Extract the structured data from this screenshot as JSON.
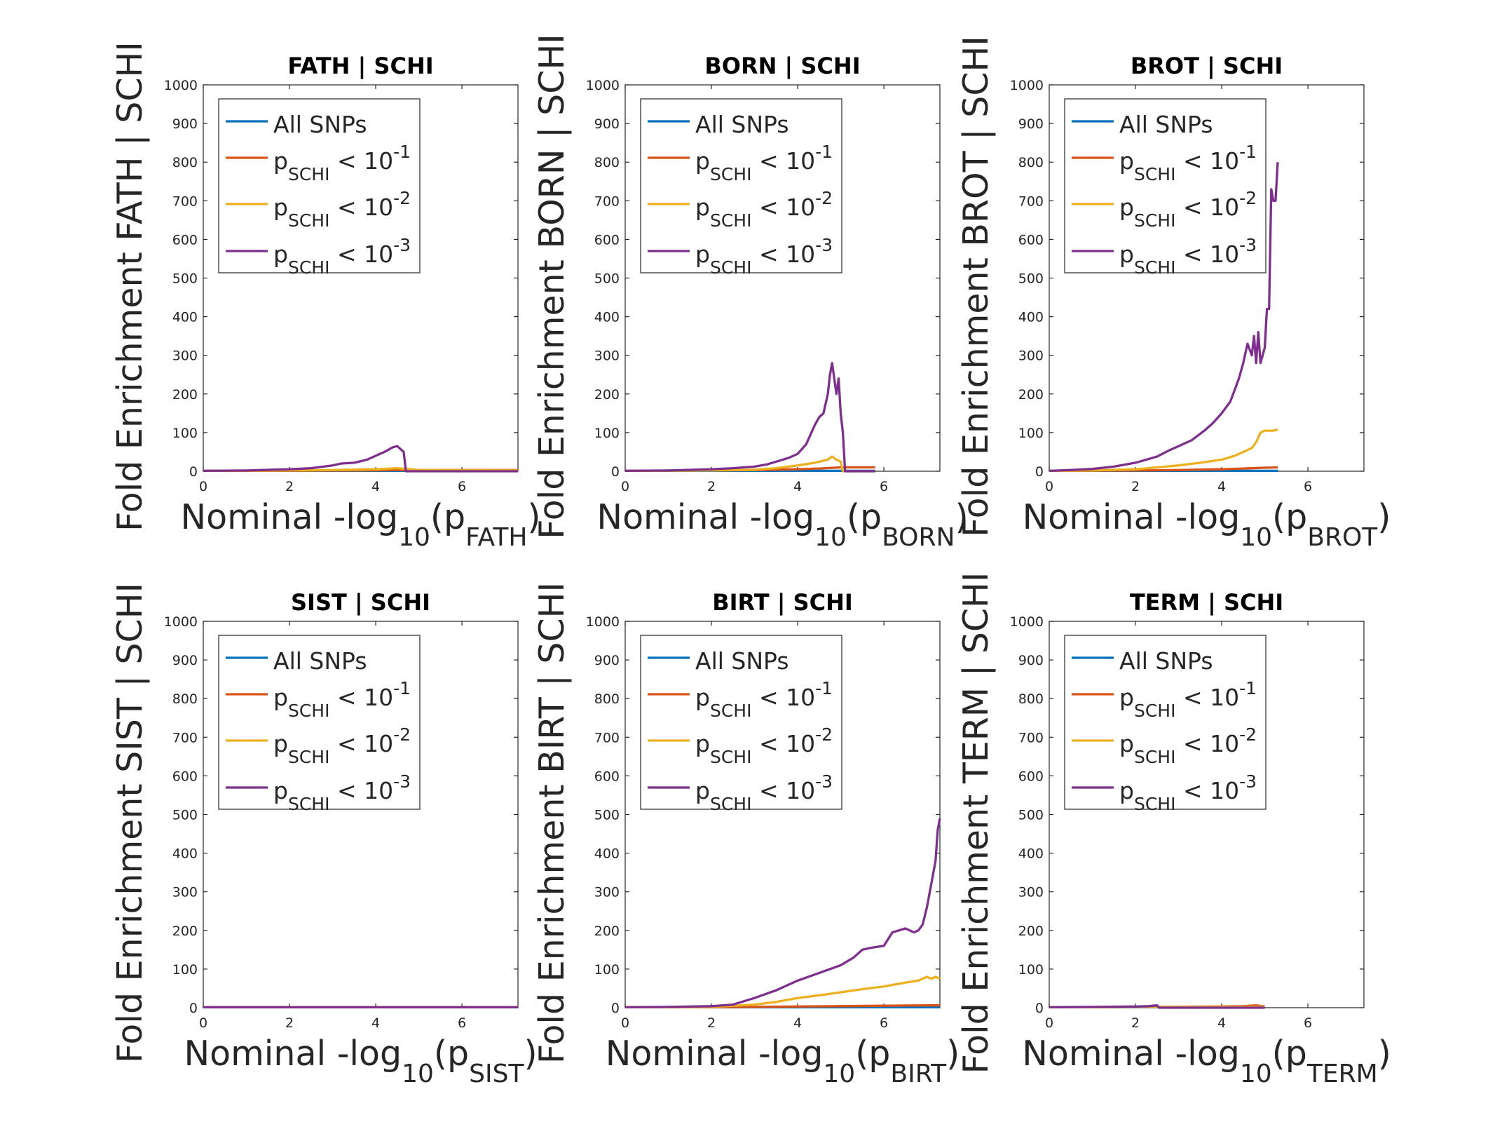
{
  "colors": {
    "all_snps": "#0072BD",
    "p1": "#D95319",
    "p2": "#EDB120",
    "p3": "#7E2F8E",
    "axis": "#262626",
    "title": "#000000"
  },
  "legend_entries": [
    {
      "key": "all",
      "text": "All SNPs"
    },
    {
      "key": "p1",
      "base": "p",
      "sub": "SCHI",
      "rel": " < 10",
      "sup": "-1"
    },
    {
      "key": "p2",
      "base": "p",
      "sub": "SCHI",
      "rel": " < 10",
      "sup": "-2"
    },
    {
      "key": "p3",
      "base": "p",
      "sub": "SCHI",
      "rel": " < 10",
      "sup": "-3"
    }
  ],
  "chart_data": [
    {
      "type": "line",
      "title": "FATH | SCHI",
      "ylabel": "Fold Enrichment FATH | SCHI",
      "xlabel": {
        "pre": "Nominal -log",
        "sub1": "10",
        "mid": "(p",
        "sub2": "FATH",
        "post": ")"
      },
      "xlim": [
        0,
        7.3
      ],
      "ylim": [
        0,
        1000
      ],
      "xticks": [
        "0",
        "2",
        "4",
        "6"
      ],
      "yticks": [
        "0",
        "100",
        "200",
        "300",
        "400",
        "500",
        "600",
        "700",
        "800",
        "900",
        "1000"
      ],
      "legend": "top-left",
      "series": [
        {
          "key": "all",
          "name": "All SNPs",
          "x": [
            0,
            7.3
          ],
          "y": [
            1,
            1
          ]
        },
        {
          "key": "p1",
          "name": "pSCHI < 10-1",
          "x": [
            0,
            2,
            3.5,
            4.5,
            5.5,
            7.3
          ],
          "y": [
            1,
            1.5,
            2,
            3,
            3,
            3
          ]
        },
        {
          "key": "p2",
          "name": "pSCHI < 10-2",
          "x": [
            0,
            2,
            3,
            4,
            4.5,
            5,
            7.3
          ],
          "y": [
            1,
            2,
            3,
            5,
            8,
            3,
            2
          ]
        },
        {
          "key": "p3",
          "name": "pSCHI < 10-3",
          "x": [
            0,
            1,
            2,
            2.5,
            3,
            3.2,
            3.5,
            3.8,
            4,
            4.2,
            4.4,
            4.5,
            4.6,
            4.65,
            4.7,
            7.3
          ],
          "y": [
            1,
            2,
            5,
            8,
            15,
            20,
            22,
            30,
            40,
            50,
            62,
            65,
            55,
            50,
            0,
            0
          ]
        }
      ]
    },
    {
      "type": "line",
      "title": "BORN | SCHI",
      "ylabel": "Fold Enrichment BORN | SCHI",
      "xlabel": {
        "pre": "Nominal -log",
        "sub1": "10",
        "mid": "(p",
        "sub2": "BORN",
        "post": ")"
      },
      "xlim": [
        0,
        7.3
      ],
      "ylim": [
        0,
        1000
      ],
      "xticks": [
        "0",
        "2",
        "4",
        "6"
      ],
      "yticks": [
        "0",
        "100",
        "200",
        "300",
        "400",
        "500",
        "600",
        "700",
        "800",
        "900",
        "1000"
      ],
      "legend": "top-left",
      "series": [
        {
          "key": "all",
          "name": "All SNPs",
          "x": [
            0,
            5.8
          ],
          "y": [
            1,
            1
          ]
        },
        {
          "key": "p1",
          "name": "pSCHI < 10-1",
          "x": [
            0,
            2,
            3,
            4,
            4.5,
            5,
            5.8
          ],
          "y": [
            1,
            2,
            3,
            5,
            7,
            10,
            10
          ]
        },
        {
          "key": "p2",
          "name": "pSCHI < 10-2",
          "x": [
            0,
            2,
            3,
            3.5,
            4,
            4.4,
            4.7,
            4.8,
            4.9,
            5.0,
            5.05,
            5.8
          ],
          "y": [
            1,
            2,
            4,
            8,
            15,
            22,
            30,
            38,
            30,
            25,
            0,
            0
          ]
        },
        {
          "key": "p3",
          "name": "pSCHI < 10-3",
          "x": [
            0,
            1,
            2,
            2.5,
            3,
            3.3,
            3.6,
            3.8,
            4,
            4.2,
            4.4,
            4.5,
            4.6,
            4.7,
            4.75,
            4.8,
            4.85,
            4.9,
            4.95,
            5.0,
            5.05,
            5.1,
            5.8
          ],
          "y": [
            1,
            2,
            5,
            8,
            12,
            18,
            28,
            35,
            45,
            70,
            120,
            140,
            150,
            200,
            250,
            280,
            240,
            200,
            240,
            150,
            100,
            0,
            0
          ]
        }
      ]
    },
    {
      "type": "line",
      "title": "BROT | SCHI",
      "ylabel": "Fold Enrichment BROT | SCHI",
      "xlabel": {
        "pre": "Nominal -log",
        "sub1": "10",
        "mid": "(p",
        "sub2": "BROT",
        "post": ")"
      },
      "xlim": [
        0,
        7.3
      ],
      "ylim": [
        0,
        1000
      ],
      "xticks": [
        "0",
        "2",
        "4",
        "6"
      ],
      "yticks": [
        "0",
        "100",
        "200",
        "300",
        "400",
        "500",
        "600",
        "700",
        "800",
        "900",
        "1000"
      ],
      "legend": "top-left",
      "series": [
        {
          "key": "all",
          "name": "All SNPs",
          "x": [
            0,
            5.3
          ],
          "y": [
            1,
            1
          ]
        },
        {
          "key": "p1",
          "name": "pSCHI < 10-1",
          "x": [
            0,
            2,
            3,
            4,
            4.5,
            5,
            5.3
          ],
          "y": [
            1,
            2,
            3,
            5,
            7,
            9,
            10
          ]
        },
        {
          "key": "p2",
          "name": "pSCHI < 10-2",
          "x": [
            0,
            1,
            2,
            2.5,
            3,
            3.5,
            4,
            4.3,
            4.5,
            4.7,
            4.8,
            4.9,
            5.0,
            5.2,
            5.3
          ],
          "y": [
            1,
            2,
            5,
            10,
            15,
            22,
            30,
            40,
            50,
            60,
            75,
            100,
            105,
            105,
            108
          ]
        },
        {
          "key": "p3",
          "name": "pSCHI < 10-3",
          "x": [
            0,
            0.5,
            1,
            1.5,
            2,
            2.5,
            2.8,
            3,
            3.3,
            3.6,
            3.8,
            4,
            4.2,
            4.3,
            4.4,
            4.5,
            4.6,
            4.7,
            4.75,
            4.8,
            4.85,
            4.9,
            4.95,
            5.0,
            5.05,
            5.1,
            5.15,
            5.2,
            5.25,
            5.3
          ],
          "y": [
            1,
            3,
            6,
            12,
            22,
            38,
            55,
            65,
            80,
            105,
            125,
            150,
            180,
            210,
            240,
            280,
            330,
            300,
            350,
            280,
            360,
            280,
            300,
            320,
            420,
            420,
            730,
            700,
            700,
            800
          ]
        }
      ]
    },
    {
      "type": "line",
      "title": "SIST | SCHI",
      "ylabel": "Fold Enrichment SIST | SCHI",
      "xlabel": {
        "pre": "Nominal -log",
        "sub1": "10",
        "mid": "(p",
        "sub2": "SIST",
        "post": ")"
      },
      "xlim": [
        0,
        7.3
      ],
      "ylim": [
        0,
        1000
      ],
      "xticks": [
        "0",
        "2",
        "4",
        "6"
      ],
      "yticks": [
        "0",
        "100",
        "200",
        "300",
        "400",
        "500",
        "600",
        "700",
        "800",
        "900",
        "1000"
      ],
      "legend": "top-left",
      "series": [
        {
          "key": "all",
          "name": "All SNPs",
          "x": [
            0,
            7.3
          ],
          "y": [
            1,
            1
          ]
        },
        {
          "key": "p1",
          "name": "pSCHI < 10-1",
          "x": [
            0,
            7.3
          ],
          "y": [
            1,
            1
          ]
        },
        {
          "key": "p2",
          "name": "pSCHI < 10-2",
          "x": [
            0,
            7.3
          ],
          "y": [
            1,
            1
          ]
        },
        {
          "key": "p3",
          "name": "pSCHI < 10-3",
          "x": [
            0,
            7.3
          ],
          "y": [
            1,
            1
          ]
        }
      ]
    },
    {
      "type": "line",
      "title": "BIRT | SCHI",
      "ylabel": "Fold Enrichment BIRT | SCHI",
      "xlabel": {
        "pre": "Nominal -log",
        "sub1": "10",
        "mid": "(p",
        "sub2": "BIRT",
        "post": ")"
      },
      "xlim": [
        0,
        7.3
      ],
      "ylim": [
        0,
        1000
      ],
      "xticks": [
        "0",
        "2",
        "4",
        "6"
      ],
      "yticks": [
        "0",
        "100",
        "200",
        "300",
        "400",
        "500",
        "600",
        "700",
        "800",
        "900",
        "1000"
      ],
      "legend": "top-left",
      "series": [
        {
          "key": "all",
          "name": "All SNPs",
          "x": [
            0,
            7.3
          ],
          "y": [
            1,
            1
          ]
        },
        {
          "key": "p1",
          "name": "pSCHI < 10-1",
          "x": [
            0,
            2,
            3,
            4,
            5,
            6,
            7,
            7.3
          ],
          "y": [
            1,
            1.5,
            2,
            3,
            4,
            5,
            6,
            6
          ]
        },
        {
          "key": "p2",
          "name": "pSCHI < 10-2",
          "x": [
            0,
            2,
            3,
            3.5,
            4,
            4.5,
            5,
            5.5,
            6,
            6.5,
            6.8,
            7.0,
            7.1,
            7.2,
            7.3
          ],
          "y": [
            1,
            2,
            8,
            15,
            25,
            32,
            40,
            48,
            55,
            65,
            70,
            80,
            75,
            80,
            75
          ]
        },
        {
          "key": "p3",
          "name": "pSCHI < 10-3",
          "x": [
            0,
            1,
            2,
            2.5,
            3,
            3.5,
            4,
            4.5,
            5,
            5.3,
            5.5,
            5.7,
            6,
            6.2,
            6.5,
            6.7,
            6.8,
            6.9,
            7.0,
            7.1,
            7.2,
            7.25,
            7.3
          ],
          "y": [
            1,
            2,
            4,
            8,
            25,
            45,
            70,
            90,
            110,
            130,
            150,
            155,
            160,
            195,
            205,
            195,
            200,
            215,
            260,
            320,
            380,
            460,
            490
          ]
        }
      ]
    },
    {
      "type": "line",
      "title": "TERM | SCHI",
      "ylabel": "Fold Enrichment TERM | SCHI",
      "xlabel": {
        "pre": "Nominal -log",
        "sub1": "10",
        "mid": "(p",
        "sub2": "TERM",
        "post": ")"
      },
      "xlim": [
        0,
        7.3
      ],
      "ylim": [
        0,
        1000
      ],
      "xticks": [
        "0",
        "2",
        "4",
        "6"
      ],
      "yticks": [
        "0",
        "100",
        "200",
        "300",
        "400",
        "500",
        "600",
        "700",
        "800",
        "900",
        "1000"
      ],
      "legend": "top-left",
      "series": [
        {
          "key": "all",
          "name": "All SNPs",
          "x": [
            0,
            5.0
          ],
          "y": [
            1,
            1
          ]
        },
        {
          "key": "p1",
          "name": "pSCHI < 10-1",
          "x": [
            0,
            2,
            4,
            4.5,
            4.8,
            5.0
          ],
          "y": [
            1,
            2,
            3,
            4,
            6,
            3
          ]
        },
        {
          "key": "p2",
          "name": "pSCHI < 10-2",
          "x": [
            0,
            2,
            3,
            4,
            5.0
          ],
          "y": [
            1,
            2,
            2,
            2,
            2
          ]
        },
        {
          "key": "p3",
          "name": "pSCHI < 10-3",
          "x": [
            0,
            1,
            2,
            2.3,
            2.5,
            2.55,
            5.0
          ],
          "y": [
            1,
            2,
            3,
            4,
            6,
            0,
            0
          ]
        }
      ]
    }
  ]
}
